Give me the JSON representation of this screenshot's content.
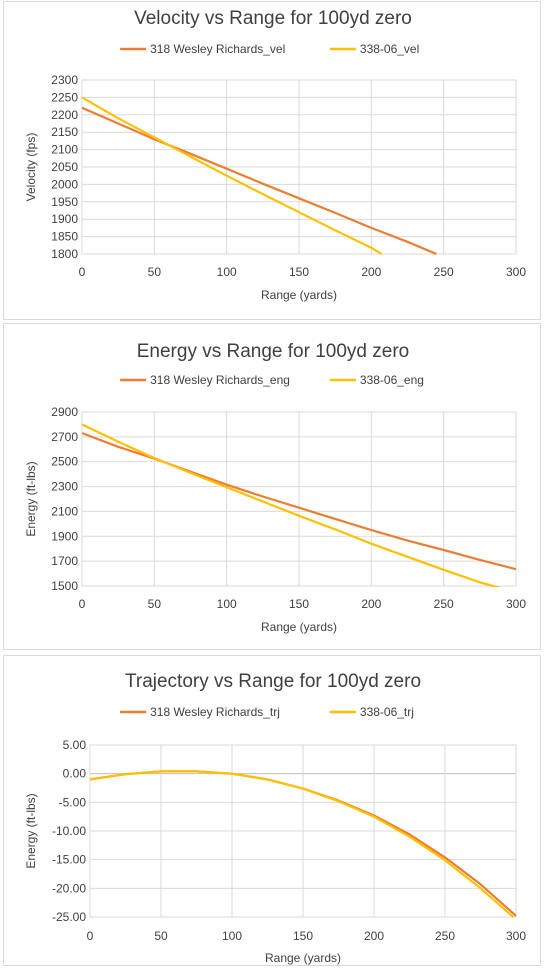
{
  "colors": {
    "wesley": "#ED7D31",
    "ought6": "#FFC000"
  },
  "chart_data": [
    {
      "type": "line",
      "title": "Velocity vs Range for 100yd zero",
      "xlabel": "Range (yards)",
      "ylabel": "Velocity (fps)",
      "xlim": [
        0,
        300
      ],
      "ylim": [
        1800,
        2300
      ],
      "xticks": [
        0,
        50,
        100,
        150,
        200,
        250,
        300
      ],
      "yticks": [
        1800,
        1850,
        1900,
        1950,
        2000,
        2050,
        2100,
        2150,
        2200,
        2250,
        2300
      ],
      "tick_decimals": 0,
      "legend": "top",
      "grid": true,
      "series": [
        {
          "name": "318 Wesley Richards_vel",
          "color": "#ED7D31",
          "x": [
            0,
            25,
            50,
            75,
            100,
            125,
            150,
            175,
            200,
            225,
            245
          ],
          "y": [
            2220,
            2175,
            2130,
            2088,
            2045,
            2002,
            1960,
            1918,
            1875,
            1835,
            1800
          ]
        },
        {
          "name": "338-06_vel",
          "color": "#FFC000",
          "x": [
            0,
            25,
            50,
            75,
            100,
            125,
            150,
            175,
            200,
            207
          ],
          "y": [
            2250,
            2190,
            2135,
            2080,
            2025,
            1972,
            1920,
            1868,
            1818,
            1800
          ]
        }
      ]
    },
    {
      "type": "line",
      "title": "Energy vs Range for 100yd zero",
      "xlabel": "Range (yards)",
      "ylabel": "Energy (ft-lbs)",
      "xlim": [
        0,
        300
      ],
      "ylim": [
        1500,
        2900
      ],
      "xticks": [
        0,
        50,
        100,
        150,
        200,
        250,
        300
      ],
      "yticks": [
        1500,
        1700,
        1900,
        2100,
        2300,
        2500,
        2700,
        2900
      ],
      "tick_decimals": 0,
      "legend": "top",
      "grid": true,
      "series": [
        {
          "name": "318 Wesley Richards_eng",
          "color": "#ED7D31",
          "x": [
            0,
            25,
            50,
            75,
            100,
            125,
            150,
            175,
            200,
            225,
            250,
            275,
            300
          ],
          "y": [
            2730,
            2620,
            2525,
            2420,
            2315,
            2220,
            2130,
            2040,
            1950,
            1865,
            1790,
            1710,
            1635
          ]
        },
        {
          "name": "338-06_eng",
          "color": "#FFC000",
          "x": [
            0,
            25,
            50,
            75,
            100,
            125,
            150,
            175,
            200,
            225,
            250,
            275,
            293
          ],
          "y": [
            2800,
            2660,
            2530,
            2410,
            2295,
            2180,
            2065,
            1955,
            1840,
            1735,
            1630,
            1530,
            1470
          ]
        }
      ]
    },
    {
      "type": "line",
      "title": "Trajectory vs Range for 100yd zero",
      "xlabel": "Range (yards)",
      "ylabel": "Energy (ft-lbs)",
      "xlim": [
        0,
        300
      ],
      "ylim": [
        -25,
        5
      ],
      "xticks": [
        0,
        50,
        100,
        150,
        200,
        250,
        300
      ],
      "yticks": [
        -25,
        -20,
        -15,
        -10,
        -5,
        0,
        5
      ],
      "tick_decimals": 2,
      "legend": "top",
      "grid": true,
      "series": [
        {
          "name": "318 Wesley Richards_trj",
          "color": "#ED7D31",
          "x": [
            0,
            25,
            50,
            75,
            100,
            125,
            150,
            175,
            200,
            225,
            250,
            275,
            300
          ],
          "y": [
            -1.0,
            -0.1,
            0.4,
            0.4,
            0.0,
            -1.0,
            -2.6,
            -4.7,
            -7.3,
            -10.6,
            -14.6,
            -19.3,
            -24.8
          ]
        },
        {
          "name": "338-06_trj",
          "color": "#FFC000",
          "x": [
            0,
            25,
            50,
            75,
            100,
            125,
            150,
            175,
            200,
            225,
            250,
            275,
            298
          ],
          "y": [
            -1.0,
            -0.1,
            0.4,
            0.4,
            0.0,
            -1.0,
            -2.6,
            -4.8,
            -7.5,
            -11.0,
            -15.1,
            -20.0,
            -25.0
          ]
        }
      ]
    }
  ]
}
